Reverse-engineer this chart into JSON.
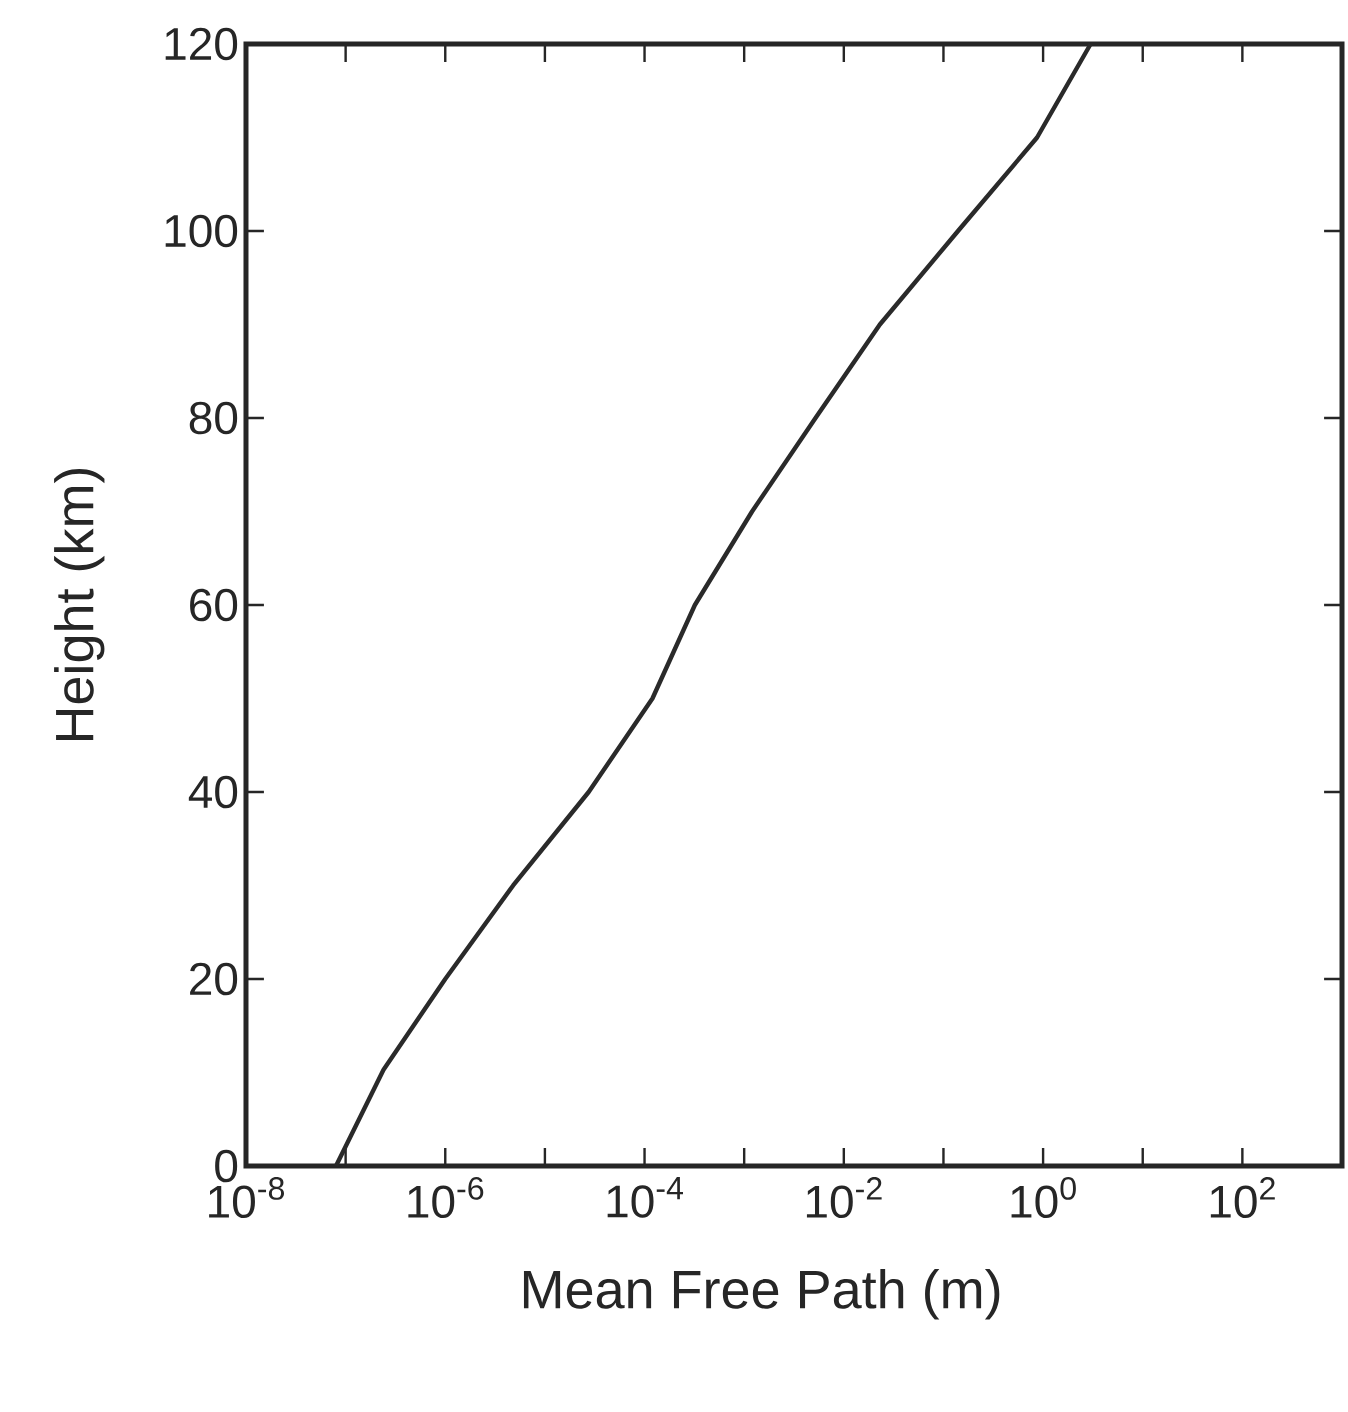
{
  "chart_data": {
    "type": "line",
    "xlabel": "Mean Free Path (m)",
    "ylabel": "Height (km)",
    "log": "x",
    "xlim": [
      1e-08,
      1000
    ],
    "ylim": [
      0,
      120
    ],
    "xticks": [
      {
        "value": 1e-08,
        "label": "10$^{-8}$"
      },
      {
        "value": 1e-07,
        "label": null
      },
      {
        "value": 1e-06,
        "label": "10$^{-6}$"
      },
      {
        "value": 1e-05,
        "label": null
      },
      {
        "value": 0.0001,
        "label": "10$^{-4}$"
      },
      {
        "value": 0.001,
        "label": null
      },
      {
        "value": 0.01,
        "label": "10$^{-2}$"
      },
      {
        "value": 0.1,
        "label": null
      },
      {
        "value": 1,
        "label": "10$^{0}$"
      },
      {
        "value": 10,
        "label": null
      },
      {
        "value": 100,
        "label": "10$^{2}$"
      }
    ],
    "yticks": [
      0,
      20,
      40,
      60,
      80,
      100,
      120
    ],
    "marker": "none",
    "line_style": "solid",
    "series": [
      {
        "color": "#2a2a2a",
        "x": [
          8e-08,
          2.4e-07,
          1e-06,
          4.8e-06,
          2.75e-05,
          0.00012,
          0.00032,
          0.0012,
          0.0052,
          0.023,
          0.14,
          0.87,
          3.0
        ],
        "values": [
          0,
          10.3,
          20,
          30,
          40,
          50,
          60,
          70,
          80,
          90,
          100,
          110,
          120
        ]
      }
    ]
  }
}
